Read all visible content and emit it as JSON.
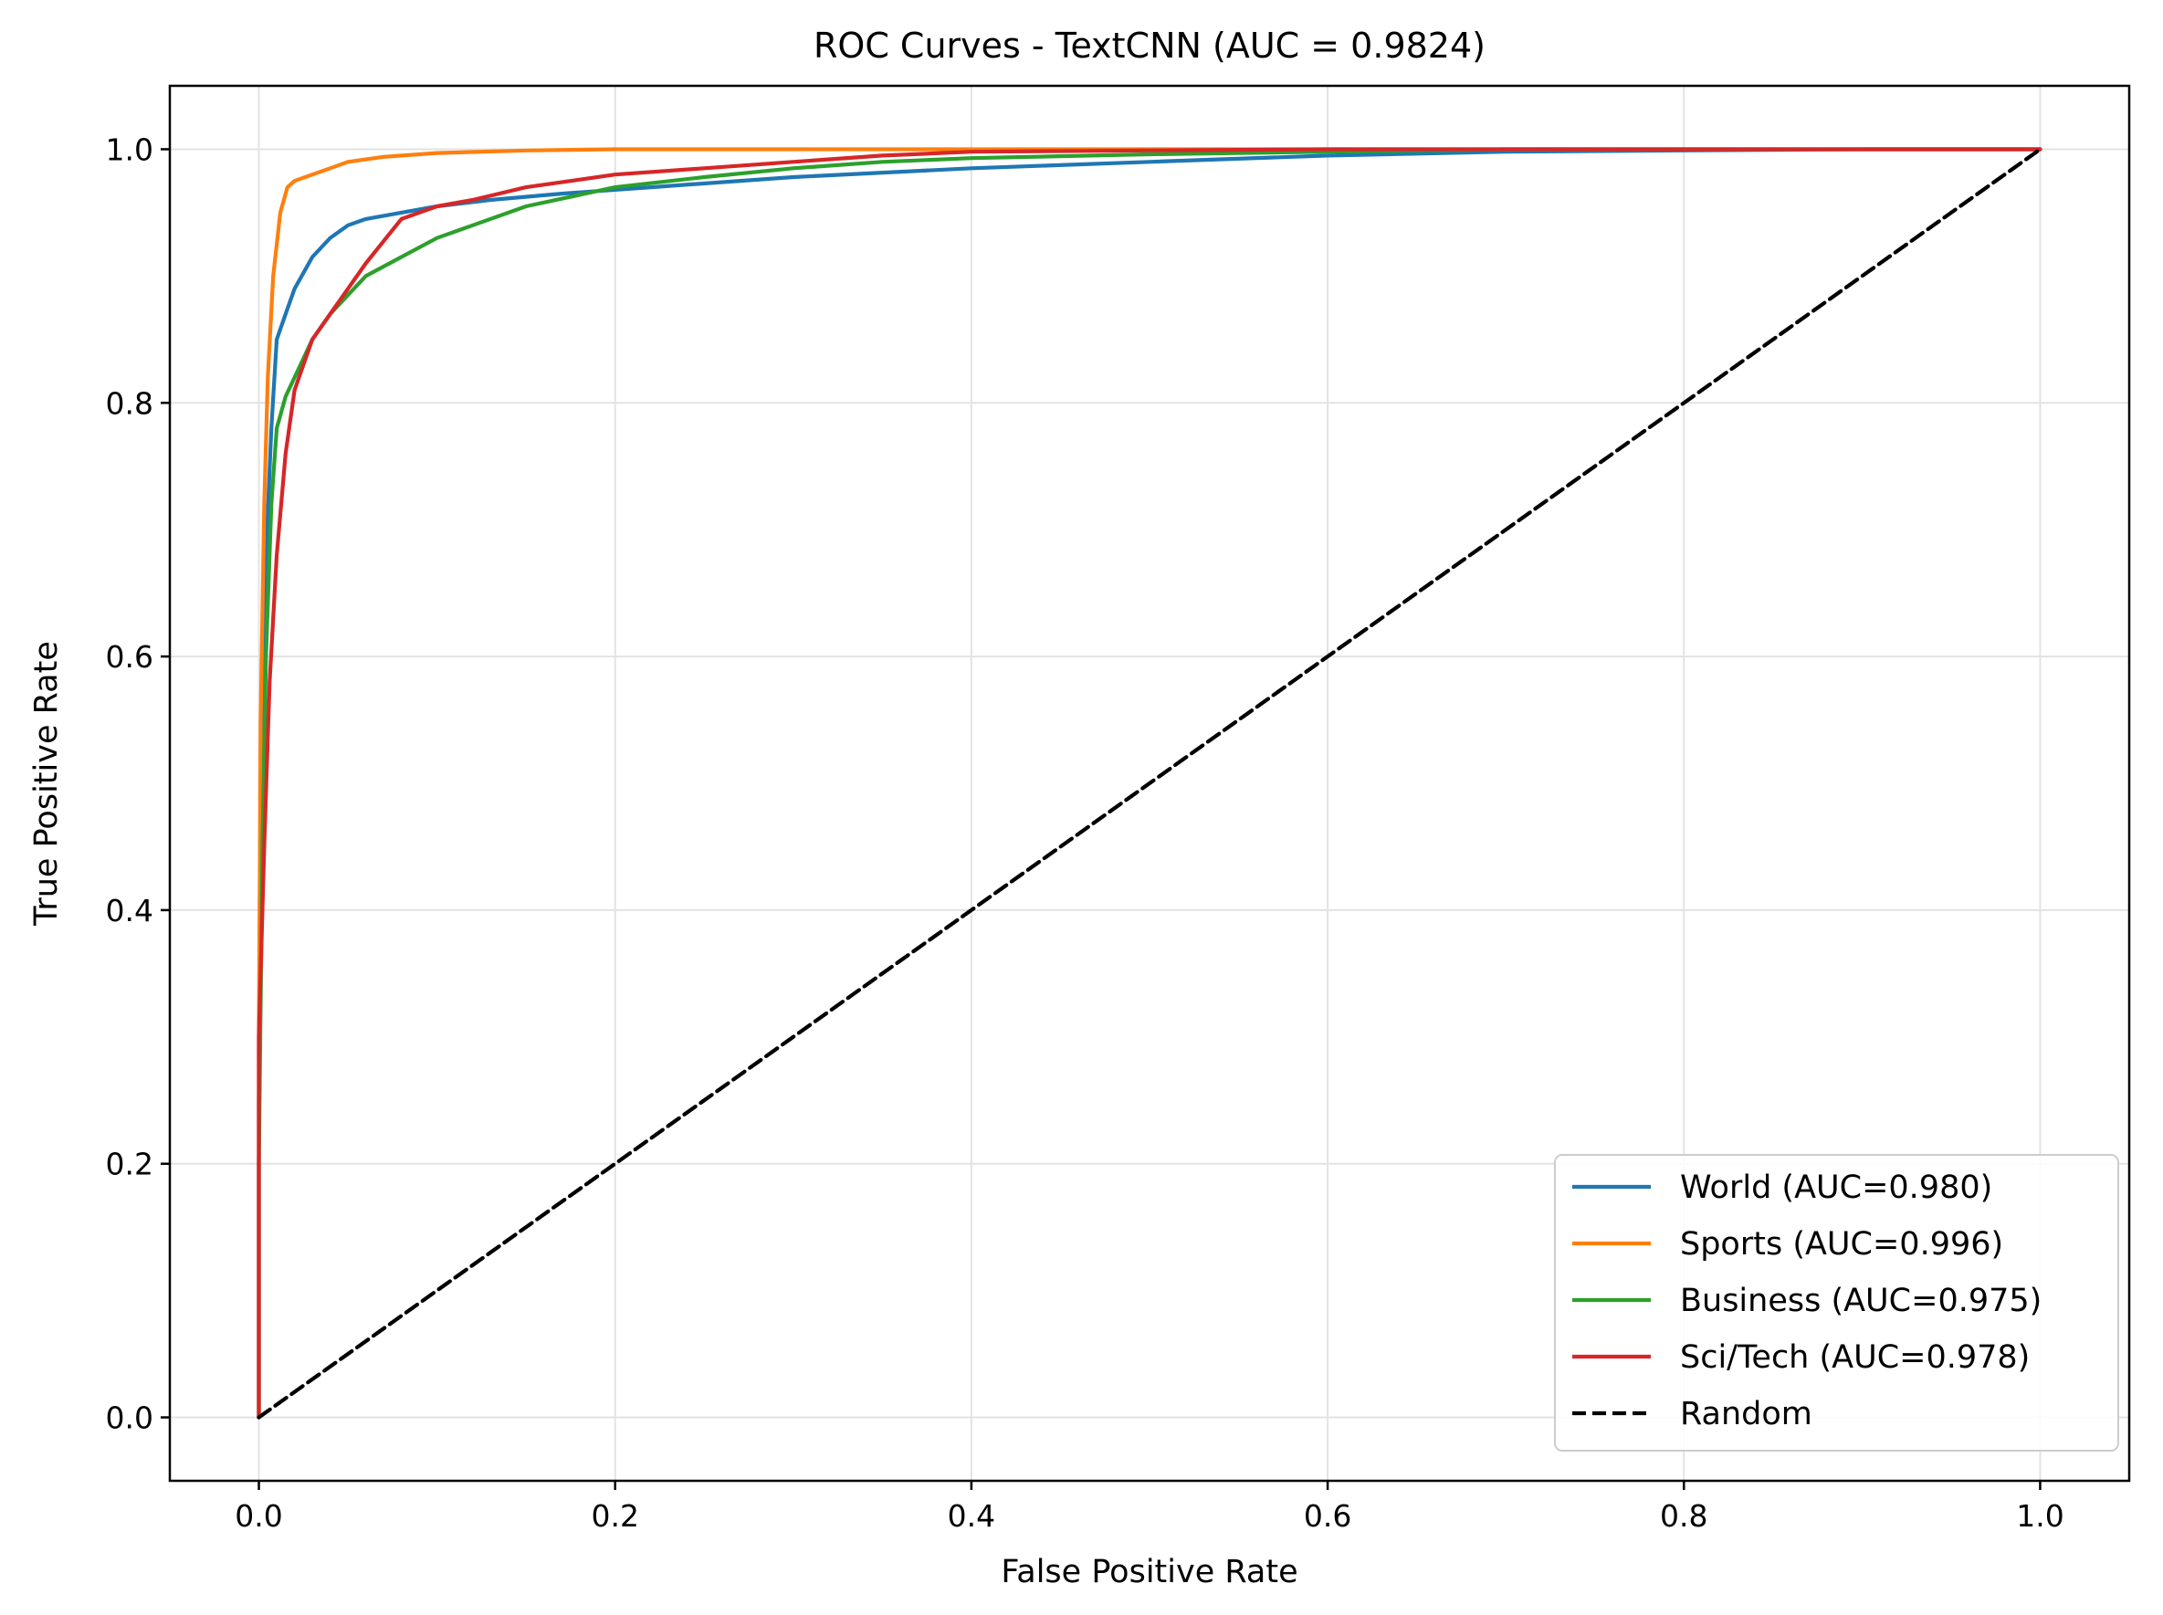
{
  "chart_data": {
    "type": "line",
    "title": "ROC Curves - TextCNN (AUC = 0.9824)",
    "xlabel": "False Positive Rate",
    "ylabel": "True Positive Rate",
    "xlim": [
      -0.05,
      1.05
    ],
    "ylim": [
      -0.05,
      1.05
    ],
    "xticks": [
      "0.0",
      "0.2",
      "0.4",
      "0.6",
      "0.8",
      "1.0"
    ],
    "yticks": [
      "0.0",
      "0.2",
      "0.4",
      "0.6",
      "0.8",
      "1.0"
    ],
    "grid": true,
    "legend_position": "lower-right",
    "series": [
      {
        "name": "World (AUC=0.980)",
        "color": "#1f77b4",
        "dash": false,
        "x": [
          0,
          0,
          0.002,
          0.004,
          0.007,
          0.01,
          0.015,
          0.02,
          0.03,
          0.04,
          0.05,
          0.06,
          0.08,
          0.1,
          0.13,
          0.17,
          0.22,
          0.3,
          0.4,
          0.5,
          0.6,
          0.7,
          0.8,
          0.9,
          1.0
        ],
        "y": [
          0,
          0.25,
          0.5,
          0.68,
          0.78,
          0.85,
          0.87,
          0.89,
          0.915,
          0.93,
          0.94,
          0.945,
          0.95,
          0.955,
          0.96,
          0.965,
          0.97,
          0.978,
          0.985,
          0.99,
          0.995,
          0.998,
          0.999,
          1.0,
          1.0
        ]
      },
      {
        "name": "Sports (AUC=0.996)",
        "color": "#ff7f0e",
        "dash": false,
        "x": [
          0,
          0,
          0.001,
          0.003,
          0.005,
          0.008,
          0.012,
          0.016,
          0.02,
          0.03,
          0.04,
          0.05,
          0.07,
          0.1,
          0.15,
          0.2,
          0.3,
          0.5,
          0.7,
          1.0
        ],
        "y": [
          0,
          0.3,
          0.55,
          0.72,
          0.82,
          0.9,
          0.95,
          0.97,
          0.975,
          0.98,
          0.985,
          0.99,
          0.994,
          0.997,
          0.999,
          1.0,
          1.0,
          1.0,
          1.0,
          1.0
        ]
      },
      {
        "name": "Business (AUC=0.975)",
        "color": "#2ca02c",
        "dash": false,
        "x": [
          0,
          0,
          0.002,
          0.004,
          0.007,
          0.01,
          0.015,
          0.02,
          0.03,
          0.04,
          0.05,
          0.06,
          0.08,
          0.1,
          0.12,
          0.15,
          0.2,
          0.25,
          0.3,
          0.35,
          0.4,
          0.5,
          0.6,
          0.7,
          0.8,
          1.0
        ],
        "y": [
          0,
          0.2,
          0.45,
          0.6,
          0.72,
          0.78,
          0.805,
          0.82,
          0.85,
          0.87,
          0.885,
          0.9,
          0.915,
          0.93,
          0.94,
          0.955,
          0.97,
          0.978,
          0.985,
          0.99,
          0.993,
          0.996,
          0.998,
          1.0,
          1.0,
          1.0
        ]
      },
      {
        "name": "Sci/Tech (AUC=0.978)",
        "color": "#d62728",
        "dash": false,
        "x": [
          0,
          0,
          0.003,
          0.006,
          0.01,
          0.015,
          0.02,
          0.025,
          0.03,
          0.04,
          0.05,
          0.06,
          0.08,
          0.1,
          0.12,
          0.15,
          0.2,
          0.25,
          0.3,
          0.35,
          0.4,
          0.5,
          0.6,
          0.7,
          0.8,
          1.0
        ],
        "y": [
          0,
          0.3,
          0.45,
          0.58,
          0.68,
          0.76,
          0.81,
          0.83,
          0.85,
          0.87,
          0.89,
          0.91,
          0.945,
          0.955,
          0.96,
          0.97,
          0.98,
          0.985,
          0.99,
          0.995,
          0.998,
          0.999,
          1.0,
          1.0,
          1.0,
          1.0
        ]
      },
      {
        "name": "Random",
        "color": "#000000",
        "dash": true,
        "x": [
          0,
          1
        ],
        "y": [
          0,
          1
        ]
      }
    ]
  }
}
